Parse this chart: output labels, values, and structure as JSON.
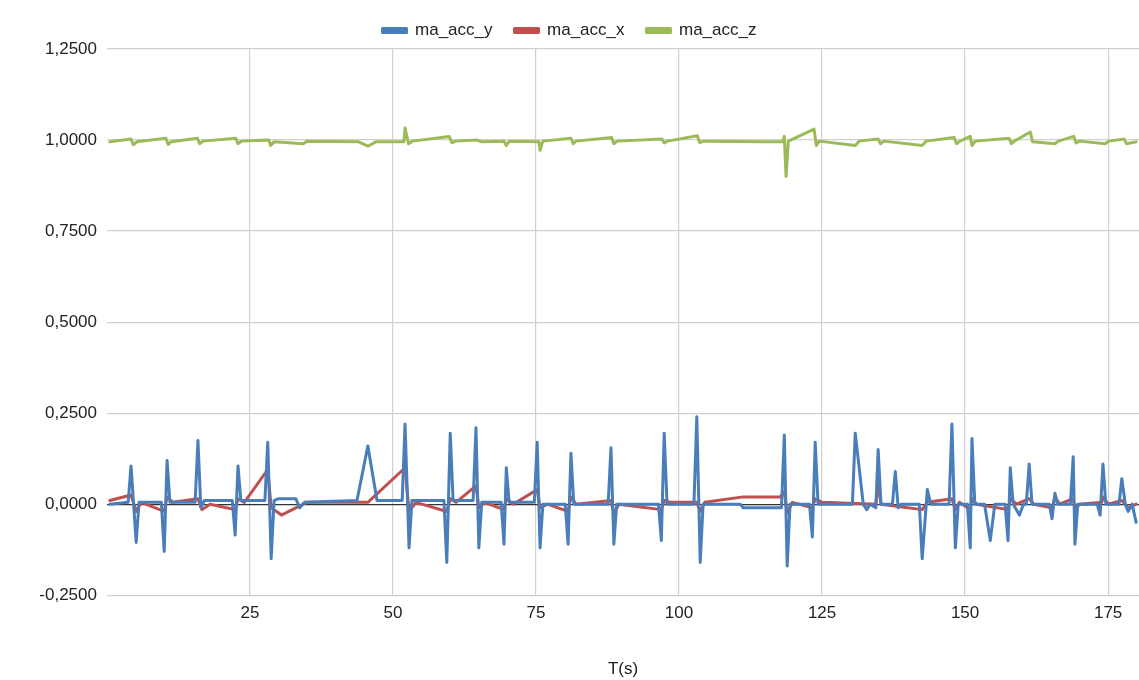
{
  "chart_data": {
    "type": "line",
    "xlabel": "T(s)",
    "legend": "top",
    "grid": true,
    "marker": "none",
    "line_style": "solid",
    "xlim": [
      0,
      180.4
    ],
    "xticks": [
      25,
      50,
      75,
      100,
      125,
      150,
      175
    ],
    "ylim": [
      -0.25,
      1.25
    ],
    "yticks": [
      {
        "value": -0.25,
        "label": "-0,2500"
      },
      {
        "value": 0,
        "label": "0,0000"
      },
      {
        "value": 0.25,
        "label": "0,2500"
      },
      {
        "value": 0.5,
        "label": "0,5000"
      },
      {
        "value": 0.75,
        "label": "0,7500"
      },
      {
        "value": 1,
        "label": "1,0000"
      },
      {
        "value": 1.25,
        "label": "1,2500"
      }
    ],
    "series": [
      {
        "name": "ma_acc_y",
        "color": "#4a7ebb",
        "x": [
          0.5,
          3.7,
          4.2,
          5.1,
          5.6,
          9.5,
          10.0,
          10.5,
          11.0,
          15.4,
          15.9,
          16.4,
          17,
          21.9,
          22.4,
          22.9,
          23.4,
          27.6,
          28.1,
          28.7,
          29.2,
          30,
          33,
          33.7,
          34.5,
          43.7,
          45.6,
          47.2,
          51.6,
          52.1,
          52.8,
          53.3,
          58.9,
          59.4,
          60.0,
          60.5,
          64.0,
          64.5,
          65.0,
          65.5,
          68.9,
          69.4,
          69.8,
          70.3,
          74.7,
          75.2,
          75.7,
          76.2,
          80.1,
          80.6,
          81.1,
          81.6,
          87.6,
          88.1,
          88.6,
          89.1,
          96.4,
          96.9,
          97.4,
          97.9,
          102.6,
          103.1,
          103.7,
          104.2,
          110.7,
          111.2,
          117.2,
          117.9,
          118.4,
          118.9,
          119.4,
          122.8,
          123.3,
          123.8,
          124.3,
          130.3,
          130.8,
          132.2,
          132.8,
          133.4,
          134.4,
          134.8,
          135.3,
          137.3,
          137.8,
          138.3,
          138.8,
          142.0,
          142.5,
          143.4,
          144,
          147.2,
          147.7,
          148.3,
          148.8,
          150.4,
          150.9,
          151.2,
          151.7,
          153.4,
          154.4,
          155.2,
          157.0,
          157.5,
          157.9,
          158.4,
          159.5,
          160.2,
          160.7,
          161.2,
          161.7,
          164.7,
          165.2,
          165.7,
          166.2,
          168.4,
          168.9,
          169.2,
          169.7,
          173.1,
          173.6,
          174.1,
          174.6,
          176.9,
          177.4,
          178.0,
          178.5,
          179.2,
          179.9
        ],
        "values": [
          0,
          0.005,
          0.105,
          -0.105,
          0.005,
          0.005,
          -0.13,
          0.12,
          0.005,
          0.005,
          0.175,
          -0.01,
          0.01,
          0.01,
          -0.085,
          0.105,
          0.01,
          0.01,
          0.17,
          -0.15,
          0.01,
          0.015,
          0.015,
          -0.01,
          0.005,
          0.01,
          0.16,
          0.01,
          0.01,
          0.22,
          -0.12,
          0.01,
          0.01,
          -0.16,
          0.195,
          0.01,
          0.01,
          0.21,
          -0.12,
          0.005,
          0.005,
          -0.11,
          0.1,
          0.005,
          0.005,
          0.17,
          -0.12,
          0,
          0,
          -0.11,
          0.14,
          0,
          0,
          0.155,
          -0.11,
          0,
          0,
          -0.1,
          0.195,
          0,
          0,
          0.24,
          -0.16,
          0,
          0,
          -0.01,
          -0.01,
          -0.01,
          0.19,
          -0.17,
          0,
          0,
          -0.09,
          0.17,
          0,
          0,
          0.195,
          0,
          -0.015,
          0,
          -0.01,
          0.15,
          0,
          0,
          0.09,
          -0.01,
          0,
          0,
          -0.15,
          0.04,
          0,
          0,
          0.22,
          -0.12,
          0,
          0,
          -0.12,
          0.18,
          0,
          0,
          -0.1,
          0,
          0,
          -0.1,
          0.1,
          0,
          -0.03,
          0,
          0,
          0.11,
          0,
          0,
          -0.04,
          0.03,
          0,
          0,
          0.13,
          -0.11,
          0,
          0,
          -0.03,
          0.11,
          0,
          0,
          0.07,
          0,
          -0.02,
          0,
          -0.05
        ]
      },
      {
        "name": "ma_acc_x",
        "color": "#c0504d",
        "x": [
          0.5,
          4.2,
          5.1,
          6,
          10,
          10.5,
          11.5,
          15.9,
          16.6,
          18,
          22.4,
          22.9,
          24,
          28.1,
          28.7,
          30.5,
          33,
          35,
          45.6,
          52.1,
          52.8,
          54,
          59.4,
          60,
          61,
          64.5,
          65,
          66,
          69.4,
          69.8,
          71,
          75.2,
          75.7,
          77,
          80.6,
          81.1,
          82,
          88.1,
          88.6,
          89.5,
          96.9,
          97.4,
          98.5,
          103.1,
          103.7,
          104.5,
          111.2,
          117.7,
          118.4,
          118.9,
          119.8,
          123.3,
          123.8,
          125,
          134.4,
          134.8,
          135.3,
          142.5,
          143.4,
          147.7,
          148.3,
          149,
          150.9,
          151.2,
          152,
          157.5,
          157.9,
          159,
          161.2,
          162,
          165.2,
          165.7,
          166.5,
          168.9,
          169.2,
          170,
          173.9,
          174.1,
          175,
          177.4,
          178.5,
          179.9
        ],
        "values": [
          0.01,
          0.025,
          -0.02,
          0.005,
          -0.02,
          0.02,
          0.005,
          0.015,
          -0.015,
          0,
          -0.015,
          0.015,
          0.005,
          0.095,
          -0.01,
          -0.03,
          -0.01,
          0.005,
          0.005,
          0.1,
          -0.02,
          0.005,
          -0.02,
          0.015,
          0.005,
          0.05,
          -0.01,
          0.005,
          -0.015,
          0.015,
          0,
          0.04,
          -0.01,
          0,
          -0.02,
          0.02,
          0,
          0.01,
          -0.025,
          0,
          -0.015,
          0.01,
          0.005,
          0.005,
          -0.02,
          0.005,
          0.02,
          0.02,
          0.035,
          -0.025,
          0.005,
          -0.01,
          0.015,
          0.005,
          0,
          0.055,
          0,
          -0.015,
          0.005,
          0.015,
          -0.015,
          0.005,
          -0.015,
          0.015,
          0,
          -0.015,
          0.015,
          0,
          0.015,
          0,
          -0.01,
          0.02,
          0,
          0.015,
          -0.015,
          0,
          0.005,
          0.02,
          0,
          0.01,
          -0.01,
          0
        ]
      },
      {
        "name": "ma_acc_z",
        "color": "#9bbb59",
        "x": [
          0.5,
          4.2,
          4.6,
          5.2,
          10.3,
          10.7,
          11.2,
          15.8,
          16.2,
          16.8,
          22.5,
          22.9,
          23.5,
          28.3,
          28.6,
          29.2,
          34.3,
          35,
          44,
          45.6,
          47,
          51.9,
          52.1,
          52.7,
          53.4,
          59.8,
          60.3,
          61,
          64.7,
          65.5,
          69.4,
          69.8,
          70.3,
          75.5,
          75.7,
          76.2,
          81.1,
          81.5,
          82,
          88.2,
          88.6,
          89.2,
          97,
          97.4,
          98,
          103.2,
          103.6,
          104.3,
          118.1,
          118.4,
          118.7,
          119.1,
          123.6,
          124.0,
          124.5,
          130.8,
          131.5,
          134.8,
          135.2,
          135.8,
          142.5,
          143.2,
          148.1,
          148.5,
          149.1,
          150.9,
          151.2,
          151.8,
          157.7,
          158.1,
          158.6,
          161.4,
          161.8,
          165.7,
          166.3,
          169,
          169.4,
          170,
          174.5,
          175.1,
          177.8,
          178.2,
          179.9
        ],
        "values": [
          0.995,
          1.003,
          0.987,
          0.995,
          1.005,
          0.988,
          0.995,
          1.005,
          0.99,
          0.997,
          1.005,
          0.99,
          0.997,
          1,
          0.985,
          0.995,
          0.99,
          0.997,
          0.995,
          0.983,
          0.995,
          0.995,
          1.033,
          0.99,
          0.997,
          1.01,
          0.993,
          0.997,
          1,
          0.995,
          0.997,
          0.985,
          0.997,
          0.995,
          0.972,
          0.997,
          1.005,
          0.99,
          0.997,
          1.007,
          0.99,
          0.997,
          1.003,
          0.992,
          0.997,
          1.012,
          0.993,
          0.997,
          0.995,
          1.01,
          0.9,
          0.997,
          1.03,
          0.985,
          0.997,
          0.985,
          0.997,
          1.003,
          0.99,
          0.997,
          0.985,
          0.997,
          1.007,
          0.99,
          0.997,
          1.01,
          0.985,
          0.997,
          1.005,
          0.99,
          0.997,
          1.022,
          0.995,
          0.99,
          0.997,
          1.01,
          0.992,
          0.997,
          0.99,
          0.997,
          1.003,
          0.99,
          0.995
        ]
      }
    ]
  }
}
